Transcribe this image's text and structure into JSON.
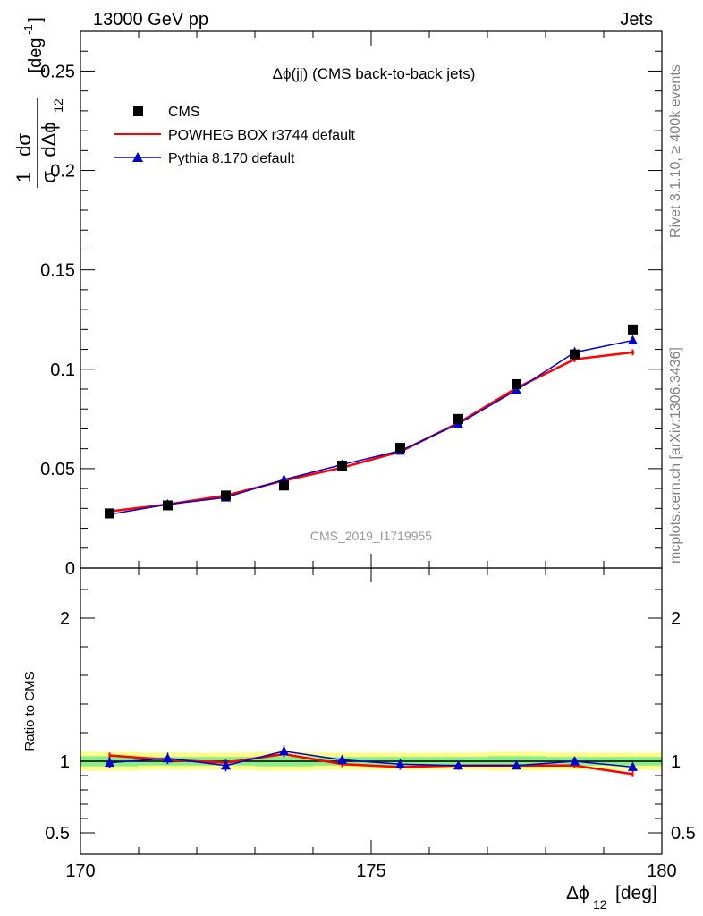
{
  "header": {
    "left": "13000 GeV pp",
    "right": "Jets"
  },
  "side_labels": {
    "rivet": "Rivet 3.1.10, ≥ 400k events",
    "mcplots": "mcplots.cern.ch [arXiv:1306.3436]"
  },
  "watermark": "CMS_2019_I1719955",
  "chart_data": [
    {
      "type": "scatter",
      "title": "Δϕ(jj) (CMS back-to-back jets)",
      "ylabel": "1/σ dσ/dΔϕ_12 [deg^-1]",
      "xlim": [
        170,
        180
      ],
      "ylim": [
        0,
        0.27
      ],
      "yticks": [
        0,
        0.05,
        0.1,
        0.15,
        0.2,
        0.25
      ],
      "ytick_labels": [
        "0",
        "0.05",
        "0.1",
        "0.15",
        "0.2",
        "0.25"
      ],
      "legend_placement": "top-left",
      "x": [
        170.5,
        171.5,
        172.5,
        173.5,
        174.5,
        175.5,
        176.5,
        177.5,
        178.5,
        179.5
      ],
      "series": [
        {
          "name": "CMS",
          "marker": "square",
          "color": "#000000",
          "values": [
            0.0275,
            0.0315,
            0.0365,
            0.0415,
            0.0515,
            0.0605,
            0.075,
            0.0925,
            0.1075,
            0.12
          ]
        },
        {
          "name": "POWHEG BOX r3744 default",
          "marker": "line",
          "color": "#ff0000",
          "values": [
            0.0285,
            0.032,
            0.0365,
            0.044,
            0.0505,
            0.0585,
            0.073,
            0.0905,
            0.105,
            0.1085
          ],
          "errors": [
            0.0006,
            0.0006,
            0.0007,
            0.0008,
            0.0009,
            0.001,
            0.0012,
            0.0013,
            0.0015,
            0.0015
          ]
        },
        {
          "name": "Pythia 8.170 default",
          "marker": "triangle",
          "color": "#0000cc",
          "values": [
            0.027,
            0.032,
            0.0355,
            0.0445,
            0.052,
            0.059,
            0.0725,
            0.0895,
            0.1085,
            0.1145
          ],
          "errors": [
            0.0008,
            0.0008,
            0.0009,
            0.0012,
            0.0012,
            0.0013,
            0.0014,
            0.0015,
            0.0025,
            0.002
          ]
        }
      ]
    },
    {
      "type": "scatter",
      "ylabel": "Ratio to CMS",
      "xlabel": "Δϕ_12 [deg]",
      "xlim": [
        170,
        180
      ],
      "ylim": [
        0.35,
        2.35
      ],
      "xticks": [
        170,
        175,
        180
      ],
      "xtick_labels": [
        "170",
        "175",
        "180"
      ],
      "yticks": [
        0.5,
        1,
        2
      ],
      "ytick_labels": [
        "0.5",
        "1",
        "2"
      ],
      "x": [
        170.5,
        171.5,
        172.5,
        173.5,
        174.5,
        175.5,
        176.5,
        177.5,
        178.5,
        179.5
      ],
      "bands": {
        "yellow": [
          0.065,
          0.06,
          0.06,
          0.065,
          0.06,
          0.06,
          0.06,
          0.065,
          0.06,
          0.06
        ],
        "green": [
          0.035,
          0.03,
          0.03,
          0.035,
          0.03,
          0.03,
          0.03,
          0.035,
          0.03,
          0.03
        ]
      },
      "series": [
        {
          "name": "POWHEG BOX r3744 default",
          "color": "#ff0000",
          "values": [
            1.04,
            1.01,
            0.99,
            1.05,
            0.98,
            0.96,
            0.97,
            0.97,
            0.97,
            0.91
          ],
          "errors": [
            0.02,
            0.02,
            0.02,
            0.02,
            0.02,
            0.02,
            0.02,
            0.02,
            0.02,
            0.02
          ]
        },
        {
          "name": "Pythia 8.170 default",
          "color": "#0000cc",
          "values": [
            0.99,
            1.02,
            0.97,
            1.07,
            1.01,
            0.98,
            0.97,
            0.97,
            1.0,
            0.96
          ],
          "errors": [
            0.04,
            0.04,
            0.04,
            0.04,
            0.03,
            0.03,
            0.03,
            0.02,
            0.03,
            0.03
          ]
        }
      ]
    }
  ]
}
